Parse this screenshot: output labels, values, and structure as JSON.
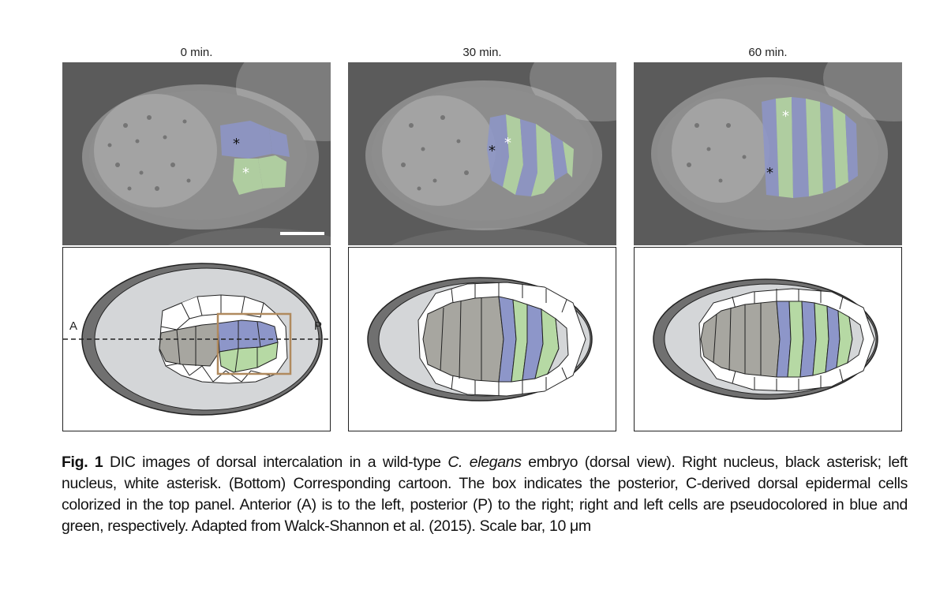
{
  "panels": [
    {
      "time_label": "0 min."
    },
    {
      "time_label": "30 min."
    },
    {
      "time_label": "60 min."
    }
  ],
  "cartoon_labels": {
    "anterior": "A",
    "posterior": "P"
  },
  "asterisk": "*",
  "colors": {
    "right_cells_blue": "#8d96c9",
    "left_cells_green": "#b6d9a4",
    "box": "#b08a5e",
    "embryo_gray": "#d4d6d8",
    "eggshell_dark": "#707070",
    "cell_gray": "#a7a6a0"
  },
  "caption": {
    "fig_label": "Fig. 1",
    "text_1": " DIC images of dorsal intercalation in a wild-type ",
    "species": "C. elegans",
    "text_2": " embryo (dorsal view). Right nucleus, black asterisk; left nucleus, white asterisk. (Bottom) Corresponding cartoon. The box indicates the posterior, C-derived dorsal epidermal cells colorized in the top panel. Anterior (A) is to the left, posterior (P) to the right; right and left cells are pseudocolored in blue and green, respectively. Adapted from Walck-Shannon et al. (2015). Scale bar, 10 μm"
  }
}
